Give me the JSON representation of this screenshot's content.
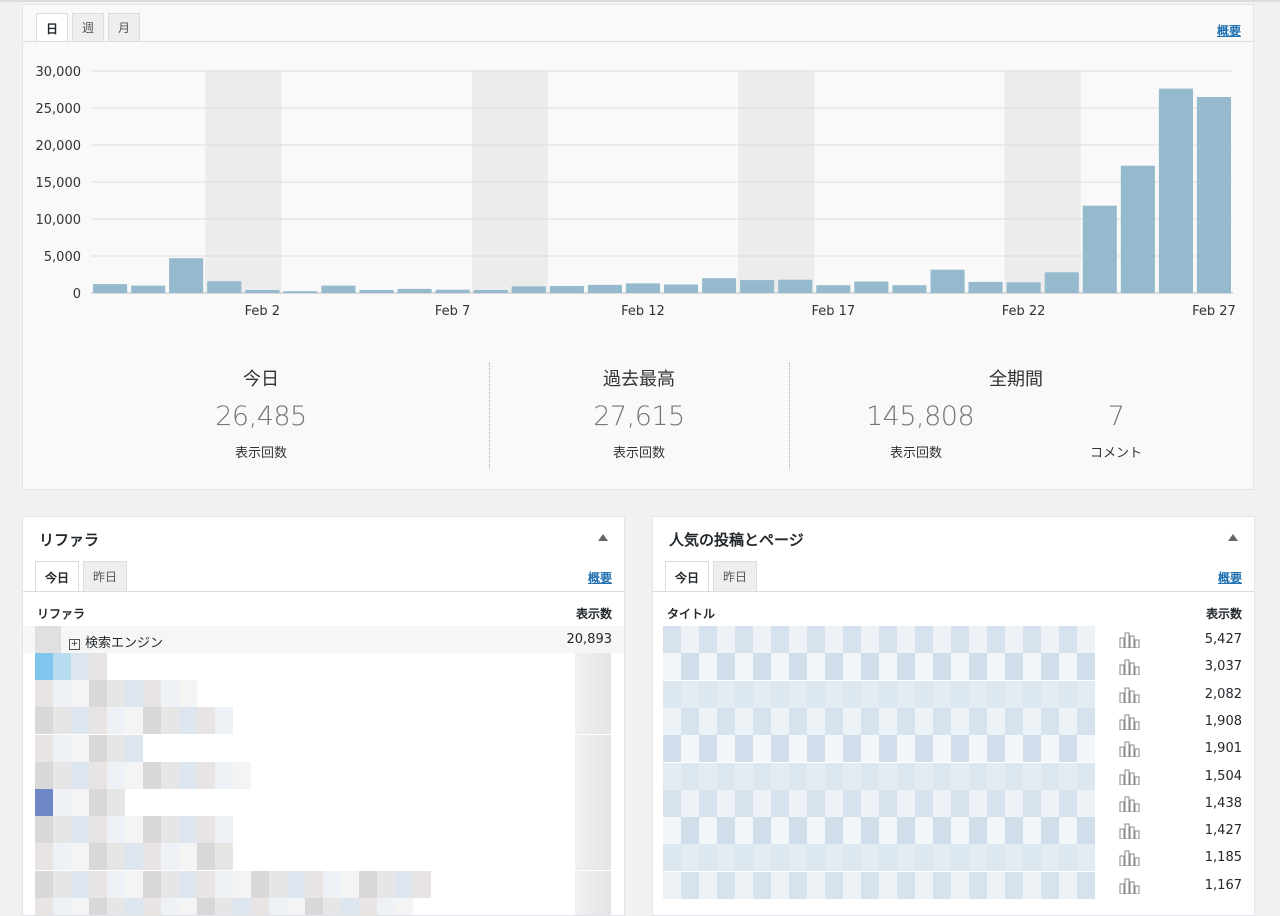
{
  "stats": {
    "tabs": [
      {
        "label": "日",
        "active": true
      },
      {
        "label": "週",
        "active": false
      },
      {
        "label": "月",
        "active": false
      }
    ],
    "summary_link": "概要",
    "summary": {
      "today": {
        "title": "今日",
        "value": "26,485",
        "unit": "表示回数"
      },
      "best": {
        "title": "過去最高",
        "value": "27,615",
        "unit": "表示回数"
      },
      "all": {
        "title": "全期間",
        "views": "145,808",
        "views_unit": "表示回数",
        "comments": "7",
        "comments_unit": "コメント"
      }
    }
  },
  "chart_data": {
    "type": "bar",
    "ylim": [
      0,
      30000
    ],
    "yticks": [
      "30,000",
      "25,000",
      "20,000",
      "15,000",
      "10,000",
      "5,000",
      "0"
    ],
    "xtick_labels": [
      "Feb 2",
      "Feb 7",
      "Feb 12",
      "Feb 17",
      "Feb 22",
      "Feb 27"
    ],
    "bar_color": "#95bacd",
    "weekend_shade": "#ececec",
    "values": [
      1200,
      1000,
      4700,
      1600,
      400,
      250,
      1000,
      400,
      550,
      450,
      400,
      900,
      950,
      1100,
      1300,
      1150,
      2000,
      1750,
      1800,
      1050,
      1550,
      1050,
      3150,
      1500,
      1450,
      2800,
      11800,
      17200,
      27615,
      26485
    ]
  },
  "referrers": {
    "title": "リファラ",
    "tabs": [
      {
        "label": "今日",
        "active": true
      },
      {
        "label": "昨日",
        "active": false
      }
    ],
    "summary_link": "概要",
    "col_name": "リファラ",
    "col_views": "表示数",
    "rows": [
      {
        "label": "検索エンジン",
        "views": "20,893"
      }
    ]
  },
  "top_posts": {
    "title": "人気の投稿とページ",
    "tabs": [
      {
        "label": "今日",
        "active": true
      },
      {
        "label": "昨日",
        "active": false
      }
    ],
    "summary_link": "概要",
    "col_name": "タイトル",
    "col_views": "表示数",
    "rows": [
      "5,427",
      "3,037",
      "2,082",
      "1,908",
      "1,901",
      "1,504",
      "1,438",
      "1,427",
      "1,185",
      "1,167"
    ]
  }
}
